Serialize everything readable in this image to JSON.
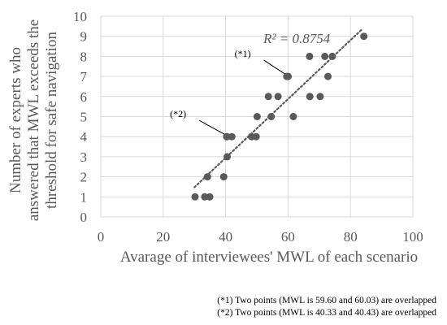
{
  "chart_data": {
    "type": "scatter",
    "title": "",
    "xlabel": "Avarage of interviewees' MWL of each scenario",
    "ylabel_lines": [
      "Number of experts who",
      "answered that MWL exceeds the",
      "threshold for safe navigation"
    ],
    "xlim": [
      0,
      100
    ],
    "ylim": [
      0,
      10
    ],
    "x_ticks": [
      0,
      20,
      40,
      60,
      80,
      100
    ],
    "y_ticks": [
      0,
      1,
      2,
      3,
      4,
      5,
      6,
      7,
      8,
      9,
      10
    ],
    "grid": true,
    "trendline": {
      "type": "linear",
      "style": "dotted",
      "r2_label": "R² = 0.8754",
      "x_range": [
        30,
        84
      ]
    },
    "points": [
      {
        "x": 30.2,
        "y": 1
      },
      {
        "x": 33.3,
        "y": 1
      },
      {
        "x": 34.9,
        "y": 1
      },
      {
        "x": 34.2,
        "y": 2
      },
      {
        "x": 39.4,
        "y": 2
      },
      {
        "x": 40.5,
        "y": 3
      },
      {
        "x": 40.33,
        "y": 4
      },
      {
        "x": 40.43,
        "y": 4
      },
      {
        "x": 42.0,
        "y": 4
      },
      {
        "x": 48.3,
        "y": 4
      },
      {
        "x": 49.8,
        "y": 4
      },
      {
        "x": 50.1,
        "y": 5
      },
      {
        "x": 54.6,
        "y": 5
      },
      {
        "x": 61.7,
        "y": 5
      },
      {
        "x": 53.7,
        "y": 6
      },
      {
        "x": 56.8,
        "y": 6
      },
      {
        "x": 67.0,
        "y": 6
      },
      {
        "x": 70.3,
        "y": 6
      },
      {
        "x": 59.6,
        "y": 7
      },
      {
        "x": 60.03,
        "y": 7
      },
      {
        "x": 72.8,
        "y": 7
      },
      {
        "x": 66.9,
        "y": 8
      },
      {
        "x": 71.8,
        "y": 8
      },
      {
        "x": 74.2,
        "y": 8
      },
      {
        "x": 84.3,
        "y": 9
      }
    ],
    "annotations": [
      {
        "label": "(*1)",
        "x": 59.8,
        "y": 7
      },
      {
        "label": "(*2)",
        "x": 40.4,
        "y": 4
      }
    ],
    "footnotes": [
      "(*1) Two points (MWL is 59.60 and 60.03) are overlapped",
      "(*2) Two points (MWL is 40.33 and 40.43) are overlapped"
    ],
    "colors": {
      "point": "#595959",
      "grid": "#d9d9d9",
      "text": "#595959"
    }
  }
}
